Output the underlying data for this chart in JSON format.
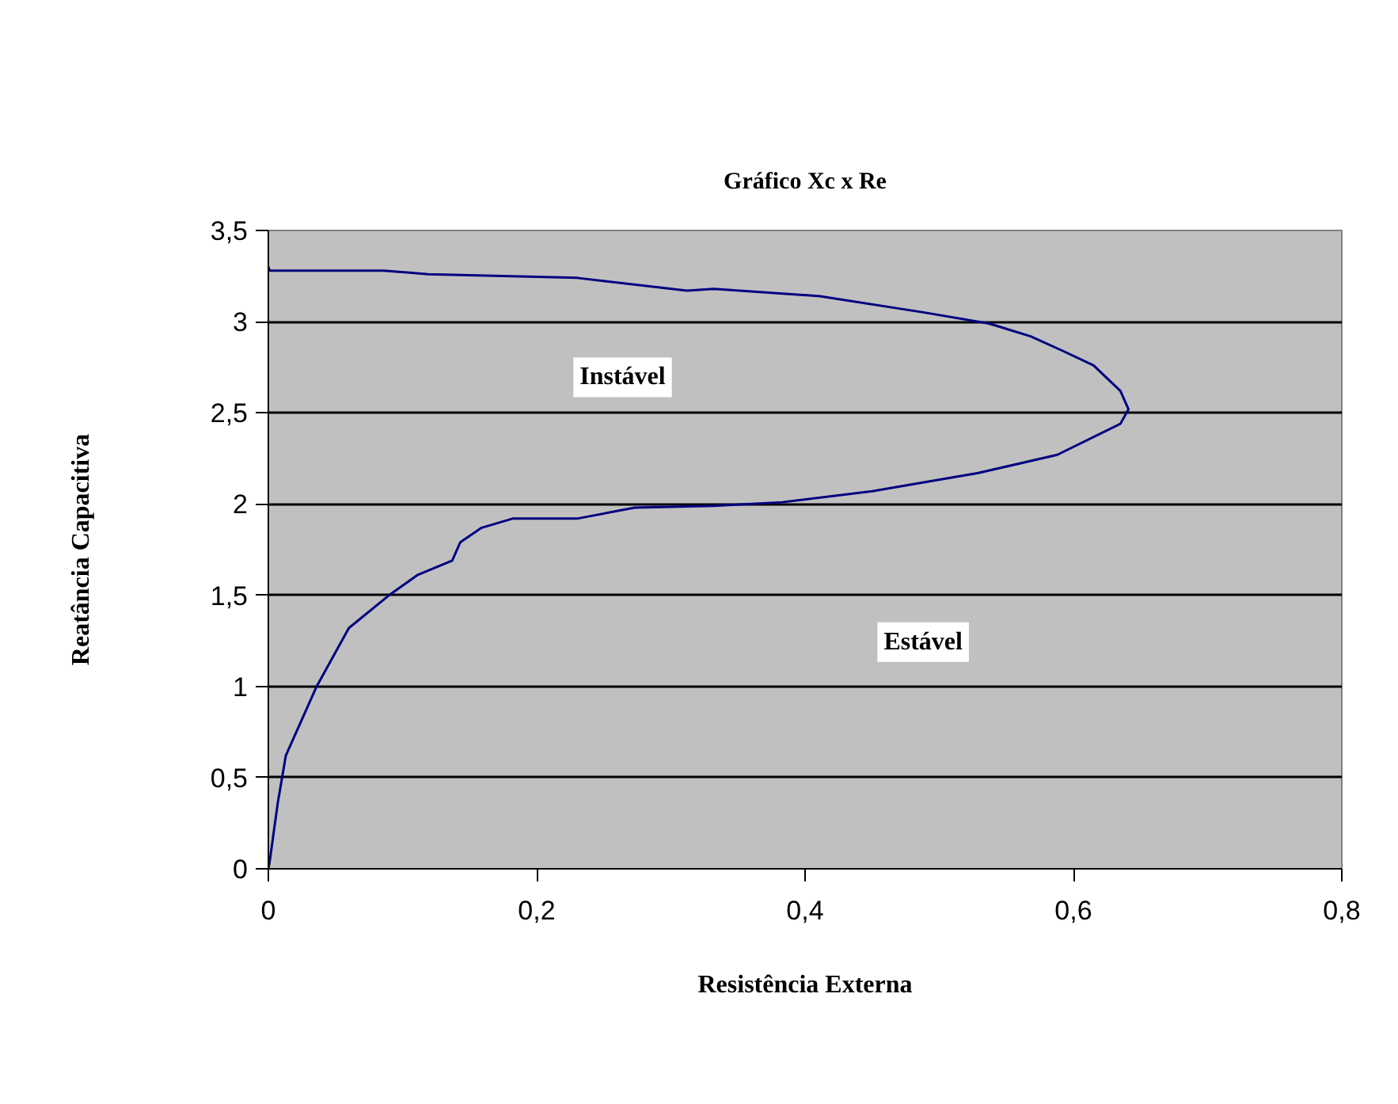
{
  "chart_data": {
    "type": "line",
    "title": "Gráfico Xc x Re",
    "xlabel": "Resistência Externa",
    "ylabel": "Reatância Capacitiva",
    "series": [
      {
        "color": "#000080",
        "x": [
          0,
          0.001,
          0.007,
          0.013,
          0.036,
          0.06,
          0.09,
          0.111,
          0.137,
          0.143,
          0.159,
          0.182,
          0.23,
          0.273,
          0.332,
          0.383,
          0.45,
          0.529,
          0.588,
          0.635,
          0.641,
          0.635,
          0.615,
          0.592,
          0.568,
          0.537,
          0.489,
          0.411,
          0.332,
          0.312,
          0.23,
          0.119,
          0.086,
          0.001,
          0
        ],
        "values": [
          0,
          0.04,
          0.36,
          0.62,
          1.0,
          1.32,
          1.5,
          1.61,
          1.69,
          1.79,
          1.87,
          1.92,
          1.92,
          1.98,
          1.99,
          2.01,
          2.07,
          2.17,
          2.27,
          2.44,
          2.52,
          2.62,
          2.76,
          2.84,
          2.92,
          2.99,
          3.05,
          3.14,
          3.18,
          3.17,
          3.24,
          3.26,
          3.28,
          3.28,
          3.3
        ]
      }
    ],
    "xlim": [
      0,
      0.8
    ],
    "ylim": [
      0,
      3.5
    ],
    "xticks": [
      0,
      {
        "value": 0.2,
        "label": "0,2"
      },
      {
        "value": 0.4,
        "label": "0,4"
      },
      {
        "value": 0.6,
        "label": "0,6"
      },
      {
        "value": 0.8,
        "label": "0,8"
      }
    ],
    "yticks": [
      0,
      {
        "value": 0.5,
        "label": "0,5"
      },
      1,
      {
        "value": 1.5,
        "label": "1,5"
      },
      2,
      {
        "value": 2.5,
        "label": "2,5"
      },
      3,
      {
        "value": 3.5,
        "label": "3,5"
      }
    ],
    "grid": "y",
    "marker": "none",
    "line_style": "solid",
    "annotations": [
      "Instável",
      "Estável"
    ]
  }
}
